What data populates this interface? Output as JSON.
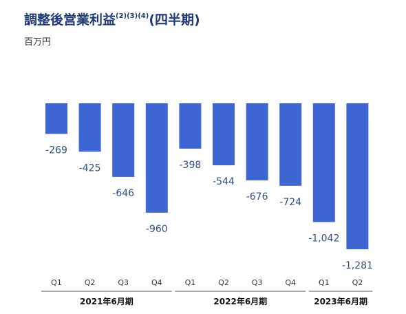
{
  "title_main": "調整後営業利益",
  "title_sup": "(2)(3)(4)",
  "title_suffix": "(四半期)",
  "unit": "百万円",
  "colors": {
    "bar": "#3e66d3",
    "label": "#2d4e8f",
    "title": "#1e3a78"
  },
  "chart_data": {
    "type": "bar",
    "title": "調整後営業利益(2)(3)(4)(四半期)",
    "ylabel": "百万円",
    "categories": [
      "Q1",
      "Q2",
      "Q3",
      "Q4",
      "Q1",
      "Q2",
      "Q3",
      "Q4",
      "Q1",
      "Q2"
    ],
    "groups": [
      {
        "label": "2021年6月期",
        "categories": [
          "Q1",
          "Q2",
          "Q3",
          "Q4"
        ]
      },
      {
        "label": "2022年6月期",
        "categories": [
          "Q1",
          "Q2",
          "Q3",
          "Q4"
        ]
      },
      {
        "label": "2023年6月期",
        "categories": [
          "Q1",
          "Q2"
        ]
      }
    ],
    "values": [
      -269,
      -425,
      -646,
      -960,
      -398,
      -544,
      -676,
      -724,
      -1042,
      -1281
    ],
    "value_labels": [
      "-269",
      "-425",
      "-646",
      "-960",
      "-398",
      "-544",
      "-676",
      "-724",
      "-1,042",
      "-1,281"
    ],
    "ylim": [
      -1281,
      0
    ],
    "grid": false,
    "legend": "none"
  }
}
